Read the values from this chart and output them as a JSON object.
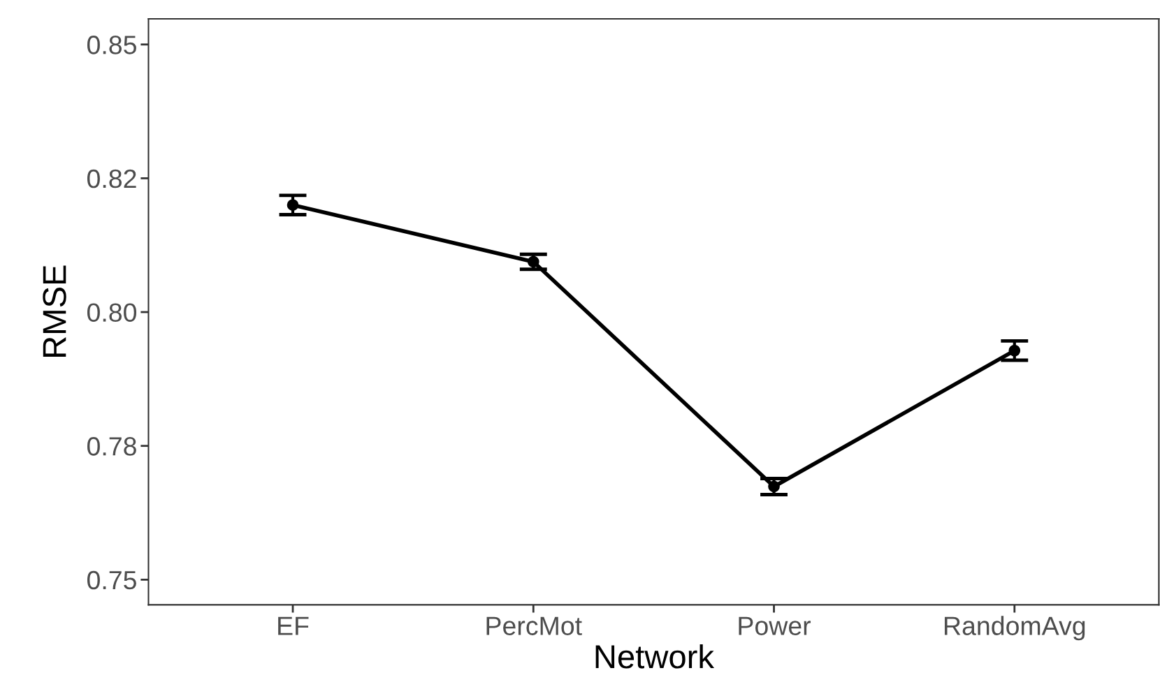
{
  "chart_data": {
    "type": "line",
    "xlabel": "Network",
    "ylabel": "RMSE",
    "categories": [
      "EF",
      "PercMot",
      "Power",
      "RandomAvg"
    ],
    "series": [
      {
        "color": "#000000",
        "values": [
          0.82,
          0.8094,
          0.7674,
          0.7928
        ],
        "errors": [
          0.0018,
          0.0014,
          0.0015,
          0.0018
        ]
      }
    ],
    "ylim": [
      0.7453,
      0.8548
    ],
    "yticks": [
      0.75,
      {
        "value": 0.775,
        "label": "0.78"
      },
      {
        "value": 0.8,
        "label": "0.80"
      },
      {
        "value": 0.825,
        "label": "0.82"
      },
      0.85
    ],
    "marker": "circle",
    "line_style": "solid",
    "grid": false,
    "legend": false
  }
}
